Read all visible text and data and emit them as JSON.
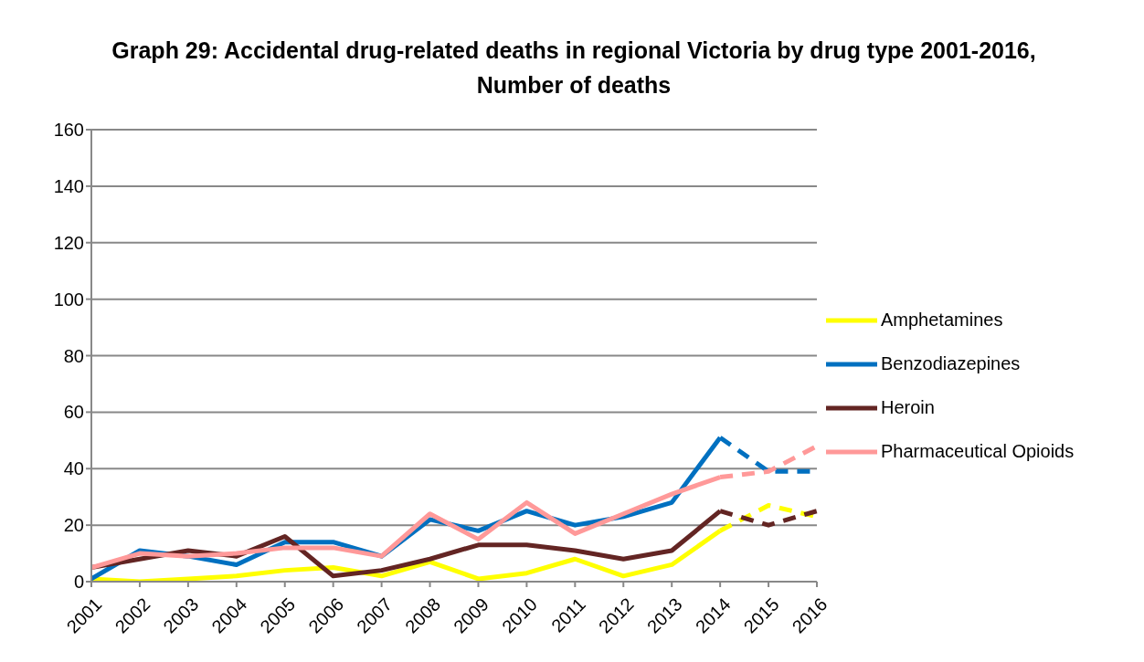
{
  "chart_data": {
    "type": "line",
    "title": "Graph 29: Accidental drug-related deaths in regional Victoria by drug type 2001-2016, Number of deaths",
    "categories": [
      "2001",
      "2002",
      "2003",
      "2004",
      "2005",
      "2006",
      "2007",
      "2008",
      "2009",
      "2010",
      "2011",
      "2012",
      "2013",
      "2014",
      "2015",
      "2016"
    ],
    "series": [
      {
        "name": "Amphetamines",
        "color": "#ffff00",
        "line_style": "solid",
        "values": [
          1,
          0,
          1,
          2,
          4,
          5,
          2,
          7,
          1,
          3,
          8,
          2,
          6,
          18,
          null,
          null
        ]
      },
      {
        "name": "Benzodiazepines",
        "color": "#0070c0",
        "line_style": "solid",
        "values": [
          1,
          11,
          9,
          6,
          14,
          14,
          9,
          22,
          18,
          25,
          20,
          23,
          28,
          51,
          null,
          null
        ]
      },
      {
        "name": "Heroin",
        "color": "#632523",
        "line_style": "solid",
        "values": [
          5,
          8,
          11,
          9,
          16,
          2,
          4,
          8,
          13,
          13,
          11,
          8,
          11,
          25,
          null,
          null
        ]
      },
      {
        "name": "Pharmaceutical Opioids",
        "color": "#ff9999",
        "line_style": "solid",
        "values": [
          5,
          10,
          9,
          10,
          12,
          12,
          9,
          24,
          15,
          28,
          17,
          24,
          31,
          37,
          null,
          null
        ]
      },
      {
        "color": "#ffff00",
        "line_style": "dashed",
        "values": [
          null,
          null,
          null,
          null,
          null,
          null,
          null,
          null,
          null,
          null,
          null,
          null,
          null,
          18,
          27,
          23
        ]
      },
      {
        "color": "#0070c0",
        "line_style": "dashed",
        "values": [
          null,
          null,
          null,
          null,
          null,
          null,
          null,
          null,
          null,
          null,
          null,
          null,
          null,
          51,
          39,
          39
        ]
      },
      {
        "color": "#632523",
        "line_style": "dashed",
        "values": [
          null,
          null,
          null,
          null,
          null,
          null,
          null,
          null,
          null,
          null,
          null,
          null,
          null,
          25,
          20,
          25
        ]
      },
      {
        "color": "#ff9999",
        "line_style": "dashed",
        "values": [
          null,
          null,
          null,
          null,
          null,
          null,
          null,
          null,
          null,
          null,
          null,
          null,
          null,
          37,
          39,
          48
        ]
      }
    ],
    "ylim": [
      0,
      160
    ],
    "yticks": [
      0,
      20,
      40,
      60,
      80,
      100,
      120,
      140,
      160
    ],
    "grid": "y",
    "legend": "right",
    "marker": "none"
  }
}
